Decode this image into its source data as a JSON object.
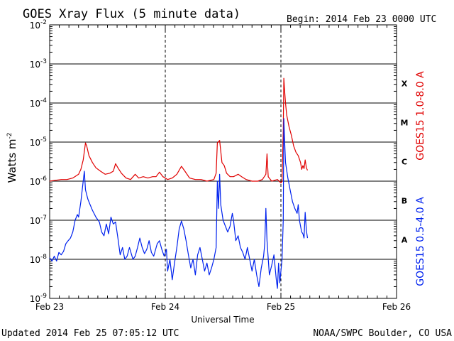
{
  "page": {
    "title": "GOES Xray Flux (5 minute data)",
    "begin": "Begin:  2014 Feb 23 0000 UTC",
    "updated": "Updated 2014 Feb 25 07:05:12 UTC",
    "credit": "NOAA/SWPC Boulder, CO USA"
  },
  "colors": {
    "long_channel": "#e00000",
    "short_channel": "#0022ee",
    "background": "#ffffff",
    "axis": "#000000"
  },
  "chart_data": {
    "type": "line",
    "title": "GOES Xray Flux (5 minute data)",
    "xlabel": "Universal Time",
    "ylabel": "Watts m",
    "ylabel_superscript": "-2",
    "y_scale": "log",
    "ylim": [
      1e-09,
      0.01
    ],
    "xlim_days": [
      0,
      3
    ],
    "grid": "horizontal lines at each decade",
    "x_ticks": [
      {
        "day": 0,
        "label": "Feb 23"
      },
      {
        "day": 1,
        "label": "Feb 24"
      },
      {
        "day": 2,
        "label": "Feb 25"
      },
      {
        "day": 3,
        "label": "Feb 26"
      }
    ],
    "y_ticks": [
      {
        "base": "10",
        "exp": "-9",
        "value": 1e-09
      },
      {
        "base": "10",
        "exp": "-8",
        "value": 1e-08
      },
      {
        "base": "10",
        "exp": "-7",
        "value": 1e-07
      },
      {
        "base": "10",
        "exp": "-6",
        "value": 1e-06
      },
      {
        "base": "10",
        "exp": "-5",
        "value": 1e-05
      },
      {
        "base": "10",
        "exp": "-4",
        "value": 0.0001
      },
      {
        "base": "10",
        "exp": "-3",
        "value": 0.001
      },
      {
        "base": "10",
        "exp": "-2",
        "value": 0.01
      }
    ],
    "flare_classes": [
      {
        "label": "X",
        "value": 0.0001
      },
      {
        "label": "M",
        "value": 1e-05
      },
      {
        "label": "C",
        "value": 1e-06
      },
      {
        "label": "B",
        "value": 1e-07
      },
      {
        "label": "A",
        "value": 1e-08
      }
    ],
    "legend_position": "right side, vertical",
    "series": [
      {
        "name": "GOES15 1.0-8.0 A",
        "color": "#e00000",
        "points": [
          [
            0.0,
            1e-06
          ],
          [
            0.05,
            1.05e-06
          ],
          [
            0.1,
            1.1e-06
          ],
          [
            0.15,
            1.1e-06
          ],
          [
            0.2,
            1.2e-06
          ],
          [
            0.25,
            1.5e-06
          ],
          [
            0.27,
            2e-06
          ],
          [
            0.29,
            3.5e-06
          ],
          [
            0.31,
            9.5e-06
          ],
          [
            0.32,
            8e-06
          ],
          [
            0.34,
            4.5e-06
          ],
          [
            0.37,
            3e-06
          ],
          [
            0.4,
            2.2e-06
          ],
          [
            0.44,
            1.8e-06
          ],
          [
            0.48,
            1.5e-06
          ],
          [
            0.52,
            1.6e-06
          ],
          [
            0.55,
            1.8e-06
          ],
          [
            0.57,
            2.8e-06
          ],
          [
            0.59,
            2.2e-06
          ],
          [
            0.62,
            1.6e-06
          ],
          [
            0.66,
            1.2e-06
          ],
          [
            0.7,
            1.1e-06
          ],
          [
            0.74,
            1.5e-06
          ],
          [
            0.77,
            1.2e-06
          ],
          [
            0.81,
            1.3e-06
          ],
          [
            0.85,
            1.2e-06
          ],
          [
            0.89,
            1.3e-06
          ],
          [
            0.92,
            1.3e-06
          ],
          [
            0.95,
            1.7e-06
          ],
          [
            0.98,
            1.3e-06
          ],
          [
            1.02,
            1.1e-06
          ],
          [
            1.06,
            1.2e-06
          ],
          [
            1.1,
            1.5e-06
          ],
          [
            1.14,
            2.4e-06
          ],
          [
            1.17,
            1.8e-06
          ],
          [
            1.21,
            1.2e-06
          ],
          [
            1.26,
            1.1e-06
          ],
          [
            1.31,
            1.1e-06
          ],
          [
            1.36,
            1e-06
          ],
          [
            1.42,
            1.1e-06
          ],
          [
            1.44,
            1.6e-06
          ],
          [
            1.45,
            9.5e-06
          ],
          [
            1.47,
            1.1e-05
          ],
          [
            1.49,
            3e-06
          ],
          [
            1.51,
            2.5e-06
          ],
          [
            1.53,
            1.6e-06
          ],
          [
            1.56,
            1.3e-06
          ],
          [
            1.59,
            1.3e-06
          ],
          [
            1.63,
            1.5e-06
          ],
          [
            1.66,
            1.3e-06
          ],
          [
            1.7,
            1.1e-06
          ],
          [
            1.75,
            1e-06
          ],
          [
            1.8,
            1e-06
          ],
          [
            1.84,
            1.1e-06
          ],
          [
            1.87,
            1.5e-06
          ],
          [
            1.88,
            5e-06
          ],
          [
            1.89,
            1.3e-06
          ],
          [
            1.92,
            1e-06
          ],
          [
            1.97,
            1.1e-06
          ],
          [
            2.0,
            9e-07
          ],
          [
            2.01,
            1e-06
          ],
          [
            2.02,
            2e-05
          ],
          [
            2.025,
            0.00043
          ],
          [
            2.03,
            0.00025
          ],
          [
            2.04,
            0.0001
          ],
          [
            2.05,
            5e-05
          ],
          [
            2.07,
            2.5e-05
          ],
          [
            2.09,
            1.5e-05
          ],
          [
            2.11,
            8e-06
          ],
          [
            2.13,
            5.5e-06
          ],
          [
            2.15,
            4.5e-06
          ],
          [
            2.17,
            3e-06
          ],
          [
            2.18,
            2e-06
          ],
          [
            2.19,
            2.5e-06
          ],
          [
            2.2,
            2.1e-06
          ],
          [
            2.21,
            3.5e-06
          ],
          [
            2.22,
            2.2e-06
          ],
          [
            2.23,
            1.9e-06
          ]
        ]
      },
      {
        "name": "GOES15 0.5-4.0 A",
        "color": "#0022ee",
        "points": [
          [
            0.0,
            1.1e-08
          ],
          [
            0.02,
            9e-09
          ],
          [
            0.04,
            1.2e-08
          ],
          [
            0.06,
            9e-09
          ],
          [
            0.08,
            1.5e-08
          ],
          [
            0.1,
            1.3e-08
          ],
          [
            0.12,
            1.6e-08
          ],
          [
            0.14,
            2.5e-08
          ],
          [
            0.16,
            3e-08
          ],
          [
            0.18,
            3.5e-08
          ],
          [
            0.2,
            5e-08
          ],
          [
            0.22,
            1e-07
          ],
          [
            0.24,
            1.4e-07
          ],
          [
            0.25,
            1.2e-07
          ],
          [
            0.27,
            3e-07
          ],
          [
            0.29,
            1e-06
          ],
          [
            0.3,
            1.8e-06
          ],
          [
            0.31,
            6e-07
          ],
          [
            0.33,
            3.5e-07
          ],
          [
            0.35,
            2.5e-07
          ],
          [
            0.37,
            1.8e-07
          ],
          [
            0.4,
            1.2e-07
          ],
          [
            0.43,
            9e-08
          ],
          [
            0.45,
            5e-08
          ],
          [
            0.47,
            4e-08
          ],
          [
            0.49,
            8e-08
          ],
          [
            0.51,
            4.5e-08
          ],
          [
            0.53,
            1.2e-07
          ],
          [
            0.55,
            8e-08
          ],
          [
            0.57,
            9e-08
          ],
          [
            0.59,
            3.5e-08
          ],
          [
            0.61,
            1.3e-08
          ],
          [
            0.63,
            2e-08
          ],
          [
            0.65,
            1e-08
          ],
          [
            0.67,
            1.2e-08
          ],
          [
            0.69,
            2e-08
          ],
          [
            0.72,
            1e-08
          ],
          [
            0.74,
            1.2e-08
          ],
          [
            0.76,
            2e-08
          ],
          [
            0.78,
            3.5e-08
          ],
          [
            0.8,
            2e-08
          ],
          [
            0.82,
            1.4e-08
          ],
          [
            0.84,
            1.8e-08
          ],
          [
            0.86,
            3e-08
          ],
          [
            0.88,
            1.5e-08
          ],
          [
            0.9,
            1.2e-08
          ],
          [
            0.93,
            2.5e-08
          ],
          [
            0.95,
            3e-08
          ],
          [
            0.97,
            1.8e-08
          ],
          [
            0.99,
            1.2e-08
          ],
          [
            1.01,
            1.8e-08
          ],
          [
            1.02,
            5e-09
          ],
          [
            1.04,
            1e-08
          ],
          [
            1.06,
            3e-09
          ],
          [
            1.08,
            8e-09
          ],
          [
            1.1,
            2e-08
          ],
          [
            1.12,
            6e-08
          ],
          [
            1.14,
            9.5e-08
          ],
          [
            1.16,
            6e-08
          ],
          [
            1.18,
            3e-08
          ],
          [
            1.2,
            1.3e-08
          ],
          [
            1.22,
            6e-09
          ],
          [
            1.24,
            1e-08
          ],
          [
            1.26,
            4e-09
          ],
          [
            1.28,
            1.3e-08
          ],
          [
            1.3,
            2e-08
          ],
          [
            1.32,
            1e-08
          ],
          [
            1.34,
            5e-09
          ],
          [
            1.36,
            8e-09
          ],
          [
            1.38,
            4e-09
          ],
          [
            1.4,
            6e-09
          ],
          [
            1.42,
            1e-08
          ],
          [
            1.44,
            2e-08
          ],
          [
            1.45,
            1e-06
          ],
          [
            1.46,
            2e-07
          ],
          [
            1.47,
            1.5e-06
          ],
          [
            1.48,
            2.5e-07
          ],
          [
            1.5,
            1e-07
          ],
          [
            1.52,
            7e-08
          ],
          [
            1.54,
            5e-08
          ],
          [
            1.56,
            7e-08
          ],
          [
            1.58,
            1.5e-07
          ],
          [
            1.59,
            1e-07
          ],
          [
            1.61,
            3e-08
          ],
          [
            1.63,
            4e-08
          ],
          [
            1.65,
            2e-08
          ],
          [
            1.67,
            1.5e-08
          ],
          [
            1.69,
            1e-08
          ],
          [
            1.71,
            2e-08
          ],
          [
            1.73,
            1e-08
          ],
          [
            1.75,
            5e-09
          ],
          [
            1.77,
            1e-08
          ],
          [
            1.79,
            4e-09
          ],
          [
            1.81,
            2e-09
          ],
          [
            1.83,
            6e-09
          ],
          [
            1.85,
            1.2e-08
          ],
          [
            1.86,
            2.5e-08
          ],
          [
            1.87,
            2e-07
          ],
          [
            1.88,
            3e-08
          ],
          [
            1.9,
            4e-09
          ],
          [
            1.92,
            7e-09
          ],
          [
            1.94,
            1.3e-08
          ],
          [
            1.96,
            3e-09
          ],
          [
            1.97,
            1.8e-09
          ],
          [
            1.98,
            8e-09
          ],
          [
            1.99,
            2.5e-09
          ],
          [
            2.0,
            5e-09
          ],
          [
            2.01,
            1e-08
          ],
          [
            2.02,
            1e-07
          ],
          [
            2.025,
            4e-05
          ],
          [
            2.03,
            1.5e-05
          ],
          [
            2.04,
            3e-06
          ],
          [
            2.06,
            1.2e-06
          ],
          [
            2.08,
            6e-07
          ],
          [
            2.1,
            3e-07
          ],
          [
            2.12,
            2e-07
          ],
          [
            2.14,
            1.5e-07
          ],
          [
            2.15,
            2.5e-07
          ],
          [
            2.16,
            1e-07
          ],
          [
            2.17,
            7e-08
          ],
          [
            2.18,
            5e-08
          ],
          [
            2.19,
            4.5e-08
          ],
          [
            2.2,
            3.5e-08
          ],
          [
            2.21,
            1.6e-07
          ],
          [
            2.22,
            5.5e-08
          ],
          [
            2.23,
            3.5e-08
          ]
        ]
      }
    ]
  }
}
